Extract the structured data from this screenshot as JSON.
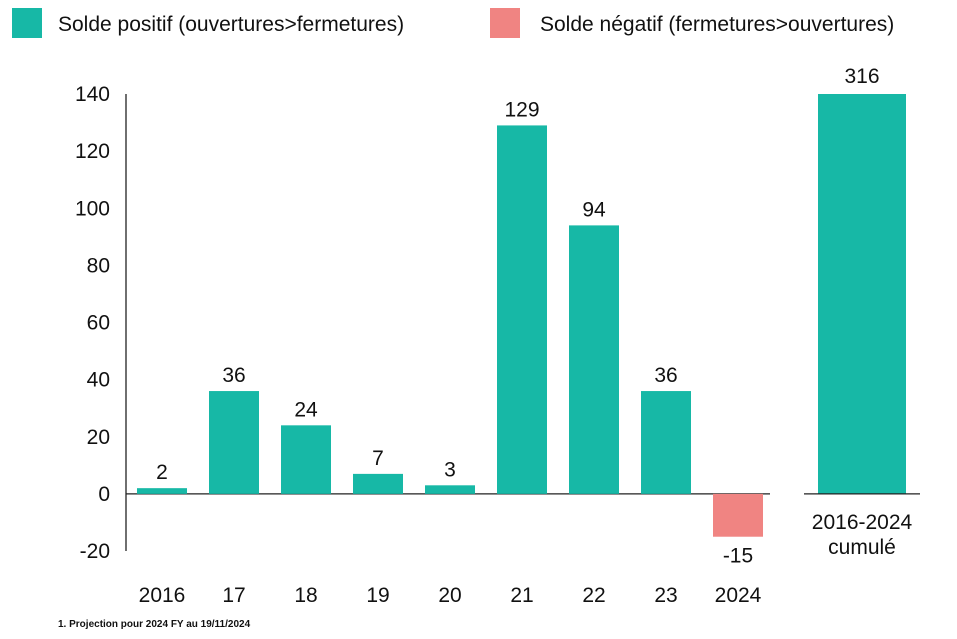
{
  "chart_data": [
    {
      "type": "bar",
      "legend": {
        "placement": "top",
        "entries": [
          {
            "label": "Solde positif (ouvertures>fermetures)",
            "color": "#17b8a6"
          },
          {
            "label": "Solde négatif (fermetures>ouvertures)",
            "color": "#f08482"
          }
        ]
      },
      "categories": [
        "2016",
        "17",
        "18",
        "19",
        "20",
        "21",
        "22",
        "23",
        "2024"
      ],
      "values": [
        2,
        36,
        24,
        7,
        3,
        129,
        94,
        36,
        -15
      ],
      "data_labels": [
        "2",
        "36",
        "24",
        "7",
        "3",
        "129",
        "94",
        "36",
        "-15"
      ],
      "ylim": [
        -20,
        140
      ],
      "yticks": [
        -20,
        0,
        20,
        40,
        60,
        80,
        100,
        120,
        140
      ],
      "grid": false,
      "positive_color": "#17b8a6",
      "negative_color": "#f08482"
    },
    {
      "type": "bar",
      "categories": [
        "2016-2024 cumulé"
      ],
      "category_lines": [
        "2016-2024",
        "cumulé"
      ],
      "values": [
        316
      ],
      "data_labels": [
        "316"
      ],
      "color": "#17b8a6"
    }
  ],
  "footnote": "1. Projection pour 2024 FY au 19/11/2024"
}
